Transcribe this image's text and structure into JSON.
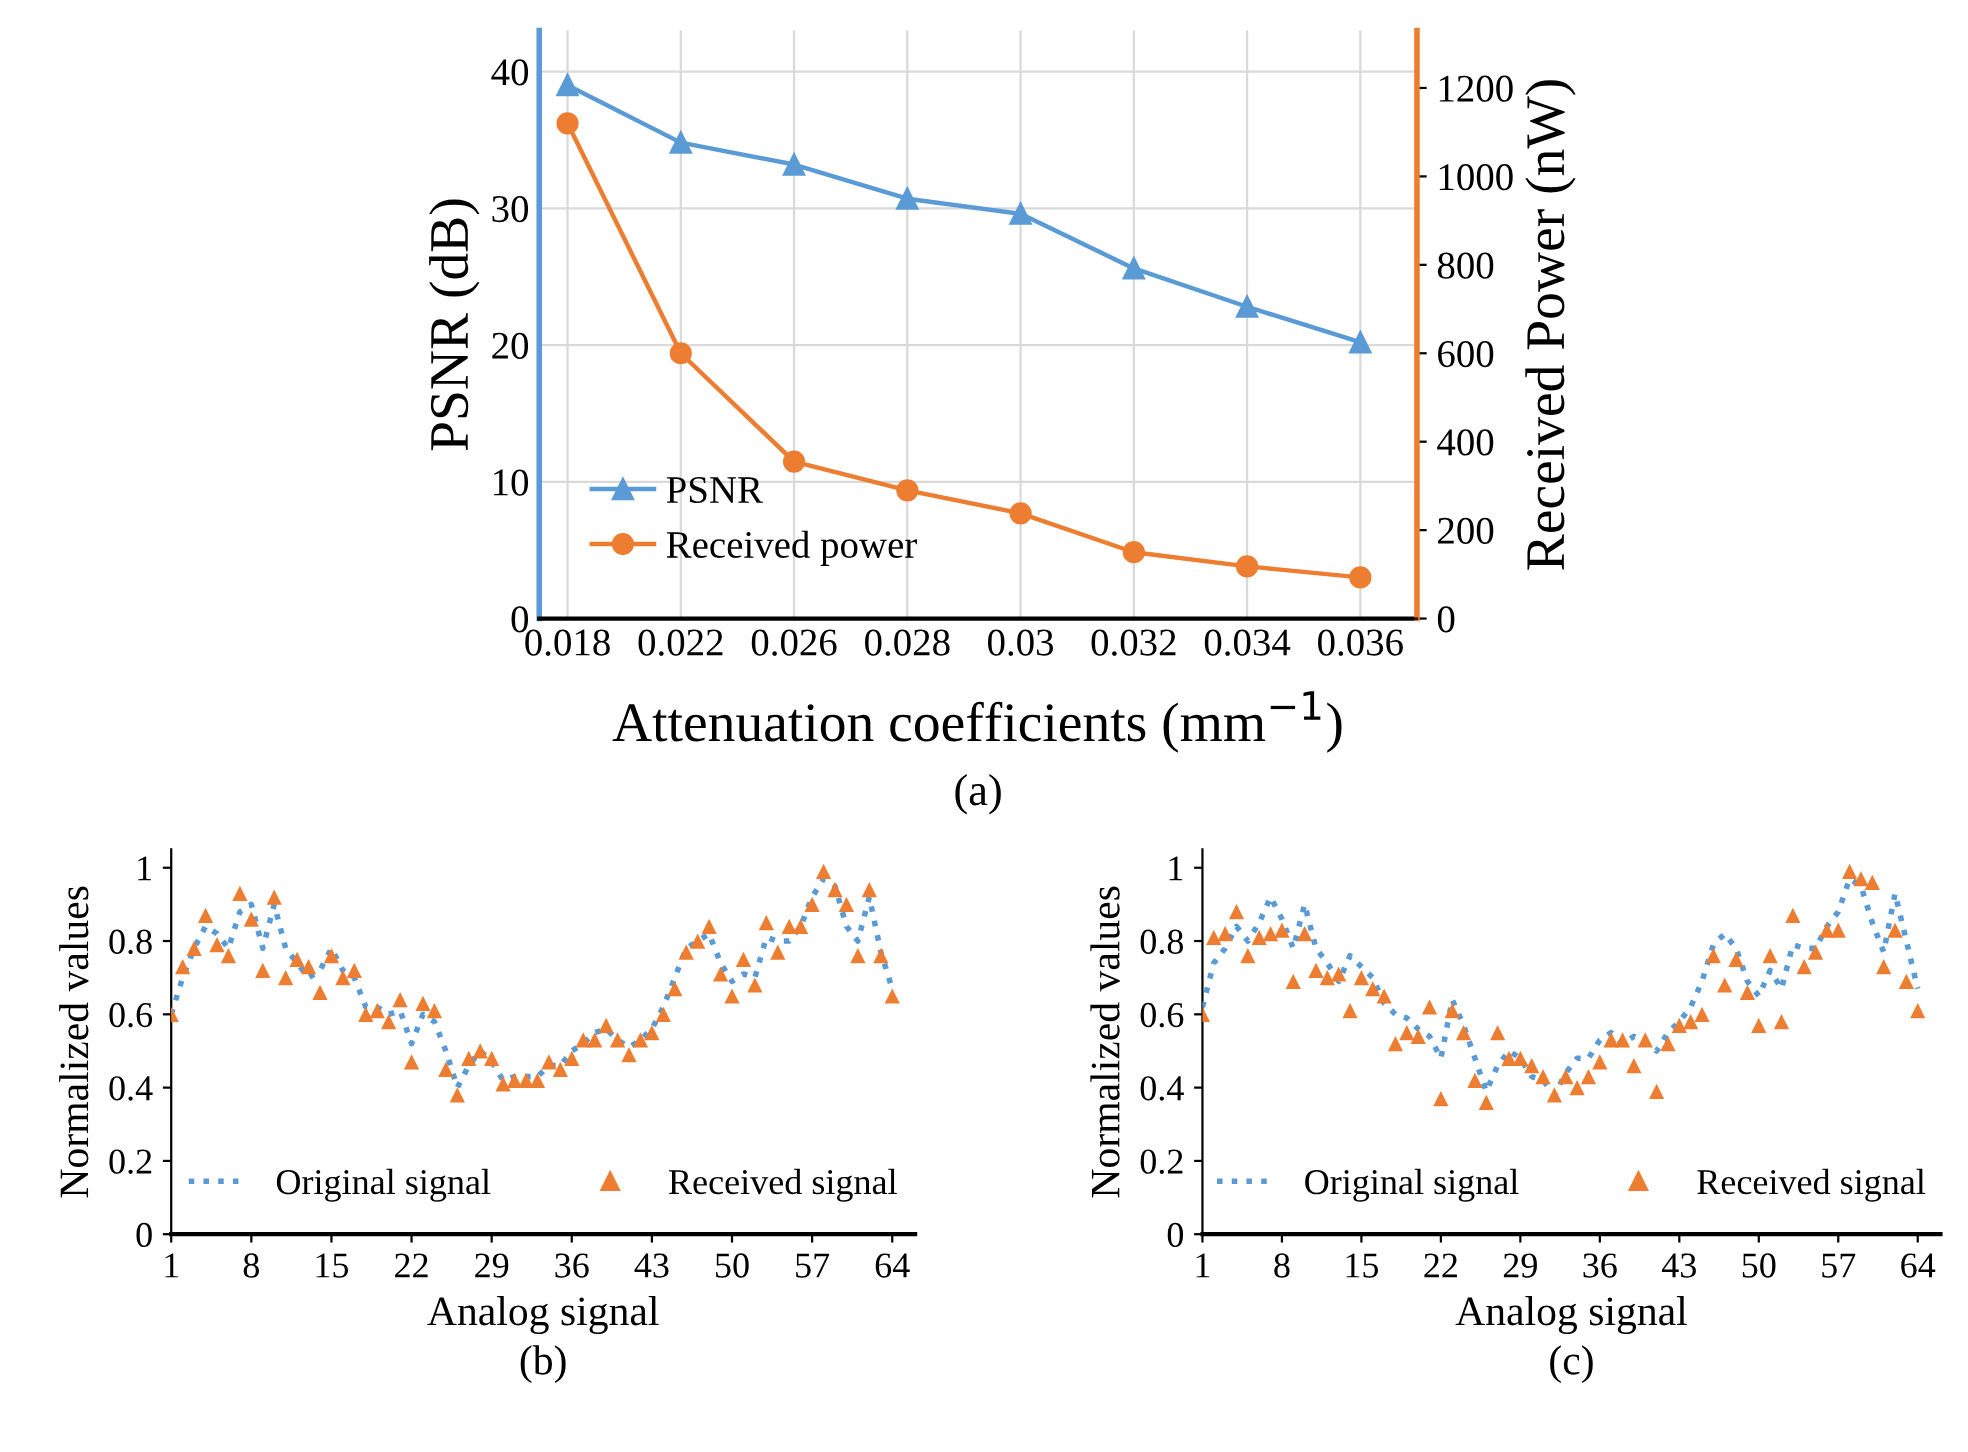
{
  "chart_data": [
    {
      "type": "line",
      "categories": [
        "0.018",
        "0.022",
        "0.026",
        "0.028",
        "0.03",
        "0.032",
        "0.034",
        "0.036"
      ],
      "xlabel": "Attenuation coefficients (mm$^{−1}$)",
      "ylabel": "PSNR (dB)",
      "y2label": "Received Power (nW)",
      "ylim": [
        0,
        43
      ],
      "yticks": [
        0,
        10,
        20,
        30,
        40
      ],
      "y2lim": [
        0,
        1330
      ],
      "y2ticks": [
        0,
        200,
        400,
        600,
        800,
        1000,
        1200
      ],
      "grid": true,
      "legend": "bottom left",
      "annotations": [
        "(a)"
      ],
      "series": [
        {
          "name": "PSNR",
          "color": "#5b9bd5",
          "marker": "triangle",
          "values": [
            39,
            34.8,
            33.2,
            30.7,
            29.6,
            25.6,
            22.8,
            20.2
          ]
        },
        {
          "name": "Received power",
          "color": "#ed7d31",
          "marker": "circle",
          "axis": "y2",
          "values": [
            1120,
            600,
            355,
            290,
            238,
            150,
            118,
            93
          ]
        }
      ]
    },
    {
      "type": "line",
      "x": [
        1,
        2,
        3,
        4,
        5,
        6,
        7,
        8,
        9,
        10,
        11,
        12,
        13,
        14,
        15,
        16,
        17,
        18,
        19,
        20,
        21,
        22,
        23,
        24,
        25,
        26,
        27,
        28,
        29,
        30,
        31,
        32,
        33,
        34,
        35,
        36,
        37,
        38,
        39,
        40,
        41,
        42,
        43,
        44,
        45,
        46,
        47,
        48,
        49,
        50,
        51,
        52,
        53,
        54,
        55,
        56,
        57,
        58,
        59,
        60,
        61,
        62,
        63,
        64
      ],
      "xlim": [
        1,
        66
      ],
      "xticks": [
        1,
        8,
        15,
        22,
        29,
        36,
        43,
        50,
        57,
        64
      ],
      "ylim": [
        0,
        1.05
      ],
      "yticks": [
        0,
        0.2,
        0.4,
        0.6,
        0.8,
        1
      ],
      "xlabel": "Analog signal",
      "ylabel": "Normalized values",
      "legend": "bottom",
      "annotations": [
        "(b)"
      ],
      "series": [
        {
          "name": "Original signal",
          "color": "#5b9bd5",
          "marker": "none",
          "line_style": "dotted",
          "values": [
            0.6,
            0.7,
            0.78,
            0.84,
            0.82,
            0.78,
            0.88,
            0.9,
            0.78,
            0.9,
            0.78,
            0.74,
            0.7,
            0.72,
            0.78,
            0.72,
            0.7,
            0.62,
            0.62,
            0.6,
            0.61,
            0.52,
            0.6,
            0.58,
            0.5,
            0.4,
            0.46,
            0.5,
            0.47,
            0.42,
            0.43,
            0.43,
            0.43,
            0.46,
            0.46,
            0.5,
            0.52,
            0.55,
            0.56,
            0.53,
            0.51,
            0.53,
            0.56,
            0.62,
            0.7,
            0.78,
            0.8,
            0.82,
            0.74,
            0.69,
            0.71,
            0.7,
            0.81,
            0.8,
            0.8,
            0.84,
            0.92,
            0.97,
            0.95,
            0.84,
            0.8,
            0.92,
            0.77,
            0.67
          ]
        },
        {
          "name": "Received signal",
          "color": "#ed7d31",
          "type": "scatter",
          "marker": "triangle",
          "values": [
            0.6,
            0.73,
            0.78,
            0.87,
            0.79,
            0.76,
            0.93,
            0.86,
            0.72,
            0.92,
            0.7,
            0.75,
            0.73,
            0.66,
            0.76,
            0.7,
            0.72,
            0.6,
            0.61,
            0.58,
            0.64,
            0.47,
            0.63,
            0.61,
            0.45,
            0.38,
            0.48,
            0.5,
            0.48,
            0.41,
            0.42,
            0.42,
            0.42,
            0.47,
            0.45,
            0.48,
            0.53,
            0.53,
            0.57,
            0.53,
            0.49,
            0.53,
            0.55,
            0.6,
            0.67,
            0.77,
            0.8,
            0.84,
            0.71,
            0.65,
            0.75,
            0.68,
            0.85,
            0.77,
            0.84,
            0.84,
            0.9,
            0.99,
            0.94,
            0.9,
            0.76,
            0.94,
            0.76,
            0.65
          ]
        }
      ]
    },
    {
      "type": "line",
      "x": [
        1,
        2,
        3,
        4,
        5,
        6,
        7,
        8,
        9,
        10,
        11,
        12,
        13,
        14,
        15,
        16,
        17,
        18,
        19,
        20,
        21,
        22,
        23,
        24,
        25,
        26,
        27,
        28,
        29,
        30,
        31,
        32,
        33,
        34,
        35,
        36,
        37,
        38,
        39,
        40,
        41,
        42,
        43,
        44,
        45,
        46,
        47,
        48,
        49,
        50,
        51,
        52,
        53,
        54,
        55,
        56,
        57,
        58,
        59,
        60,
        61,
        62,
        63,
        64
      ],
      "xlim": [
        1,
        66
      ],
      "xticks": [
        1,
        8,
        15,
        22,
        29,
        36,
        43,
        50,
        57,
        64
      ],
      "ylim": [
        0,
        1.05
      ],
      "yticks": [
        0,
        0.2,
        0.4,
        0.6,
        0.8,
        1
      ],
      "xlabel": "Analog signal",
      "ylabel": "Normalized values",
      "legend": "bottom",
      "annotations": [
        "(c)"
      ],
      "series": [
        {
          "name": "Original signal",
          "color": "#5b9bd5",
          "marker": "none",
          "line_style": "dotted",
          "values": [
            0.62,
            0.74,
            0.78,
            0.84,
            0.8,
            0.85,
            0.92,
            0.86,
            0.78,
            0.9,
            0.78,
            0.74,
            0.69,
            0.76,
            0.73,
            0.7,
            0.63,
            0.6,
            0.59,
            0.56,
            0.54,
            0.48,
            0.64,
            0.57,
            0.48,
            0.39,
            0.46,
            0.5,
            0.48,
            0.43,
            0.42,
            0.38,
            0.44,
            0.48,
            0.48,
            0.53,
            0.55,
            0.52,
            0.54,
            0.52,
            0.5,
            0.55,
            0.58,
            0.62,
            0.69,
            0.79,
            0.82,
            0.78,
            0.69,
            0.65,
            0.72,
            0.67,
            0.79,
            0.78,
            0.78,
            0.84,
            0.88,
            0.97,
            0.95,
            0.85,
            0.77,
            0.93,
            0.8,
            0.67
          ]
        },
        {
          "name": "Received signal",
          "color": "#ed7d31",
          "type": "scatter",
          "marker": "triangle",
          "values": [
            0.6,
            0.81,
            0.82,
            0.88,
            0.76,
            0.81,
            0.82,
            0.83,
            0.69,
            0.82,
            0.72,
            0.7,
            0.71,
            0.61,
            0.7,
            0.67,
            0.65,
            0.52,
            0.55,
            0.54,
            0.62,
            0.37,
            0.61,
            0.55,
            0.42,
            0.36,
            0.55,
            0.48,
            0.48,
            0.46,
            0.43,
            0.38,
            0.43,
            0.4,
            0.43,
            0.47,
            0.53,
            0.53,
            0.46,
            0.53,
            0.39,
            0.52,
            0.57,
            0.58,
            0.6,
            0.76,
            0.68,
            0.75,
            0.66,
            0.57,
            0.76,
            0.58,
            0.87,
            0.73,
            0.77,
            0.83,
            0.83,
            0.99,
            0.97,
            0.96,
            0.73,
            0.83,
            0.69,
            0.61
          ]
        }
      ]
    }
  ]
}
